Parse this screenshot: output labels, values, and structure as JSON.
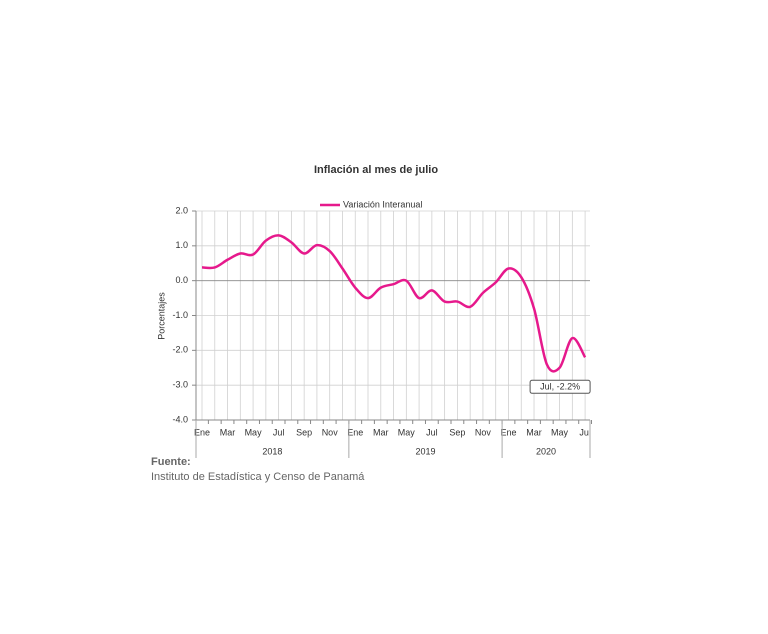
{
  "chart_data": {
    "type": "line",
    "title": "Inflación al mes de julio",
    "y_label": "Porcentajes",
    "categories": [
      "Ene",
      null,
      "Mar",
      null,
      "May",
      null,
      "Jul",
      null,
      "Sep",
      null,
      "Nov",
      null,
      "Ene",
      null,
      "Mar",
      null,
      "May",
      null,
      "Jul",
      null,
      "Sep",
      null,
      "Nov",
      null,
      "Ene",
      null,
      "Mar",
      null,
      "May",
      null,
      "Jul"
    ],
    "groups": [
      {
        "name": "2018",
        "size": 12
      },
      {
        "name": "2019",
        "size": 12
      },
      {
        "name": "2020",
        "size": 7
      }
    ],
    "series": [
      {
        "name": "Variación Interanual",
        "color": "#e6198c",
        "values": [
          0.38,
          0.38,
          0.6,
          0.78,
          0.75,
          1.15,
          1.3,
          1.1,
          0.78,
          1.02,
          0.85,
          0.35,
          -0.2,
          -0.5,
          -0.2,
          -0.1,
          0.0,
          -0.5,
          -0.28,
          -0.6,
          -0.6,
          -0.75,
          -0.35,
          -0.05,
          0.35,
          0.1,
          -0.8,
          -2.4,
          -2.5,
          -1.65,
          -2.2
        ]
      }
    ],
    "annotation": {
      "text": "Jul, -2.2%",
      "index": 30
    },
    "ylim": [
      -4,
      2
    ],
    "yticks": [
      {
        "value": 2,
        "label": "2.0"
      },
      {
        "value": 1,
        "label": "1.0"
      },
      {
        "value": 0,
        "label": "0.0"
      },
      {
        "value": -1,
        "label": "-1.0"
      },
      {
        "value": -2,
        "label": "-2.0"
      },
      {
        "value": -3,
        "label": "-3.0"
      },
      {
        "value": -4,
        "label": "-4.0"
      }
    ],
    "grid": true,
    "legend": "top",
    "source_heading": "Fuente:",
    "source": "Instituto de Estadística y Censo de Panamá"
  }
}
